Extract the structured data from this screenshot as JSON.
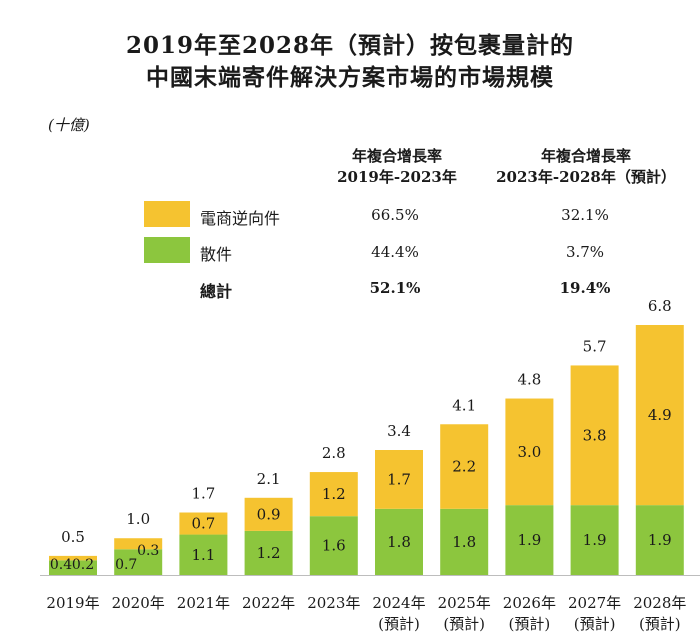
{
  "title_line1": "2019年至2028年（預計）按包裹量計的",
  "title_line2": "中國末端寄件解決方案市場的市場規模",
  "unit": "(十億)",
  "cagr_header_1": [
    "年複合增長率",
    "2019年-2023年"
  ],
  "cagr_header_2": [
    "年複合增長率",
    "2023年-2028年（預計）"
  ],
  "legend": [
    {
      "name": "電商逆向件",
      "color": "#f5c330",
      "cagr_2019_2023": "66.5%",
      "cagr_2023_2028": "32.1%"
    },
    {
      "name": "散件",
      "color": "#8cc63e",
      "cagr_2019_2023": "44.4%",
      "cagr_2023_2028": "3.7%"
    }
  ],
  "total": {
    "name": "總計",
    "cagr_2019_2023": "52.1%",
    "cagr_2023_2028": "19.4%"
  },
  "chart_data": {
    "type": "bar",
    "stacked": true,
    "categories": [
      [
        "2019年"
      ],
      [
        "2020年"
      ],
      [
        "2021年"
      ],
      [
        "2022年"
      ],
      [
        "2023年"
      ],
      [
        "2024年",
        "(預計)"
      ],
      [
        "2025年",
        "(預計)"
      ],
      [
        "2026年",
        "(預計)"
      ],
      [
        "2027年",
        "(預計)"
      ],
      [
        "2028年",
        "(預計)"
      ]
    ],
    "series": [
      {
        "name": "散件",
        "color": "#8cc63e",
        "values": [
          0.4,
          0.7,
          1.1,
          1.2,
          1.6,
          1.8,
          1.8,
          1.9,
          1.9,
          1.9
        ]
      },
      {
        "name": "電商逆向件",
        "color": "#f5c330",
        "values": [
          0.2,
          0.3,
          0.7,
          0.9,
          1.2,
          1.7,
          2.2,
          3.0,
          3.8,
          4.9
        ]
      }
    ],
    "totals": [
      0.5,
      1.0,
      1.7,
      2.1,
      2.8,
      3.4,
      4.1,
      4.8,
      5.7,
      6.8
    ],
    "ylim": [
      0,
      6.8
    ],
    "grid": false,
    "yaxis_visible": false
  }
}
